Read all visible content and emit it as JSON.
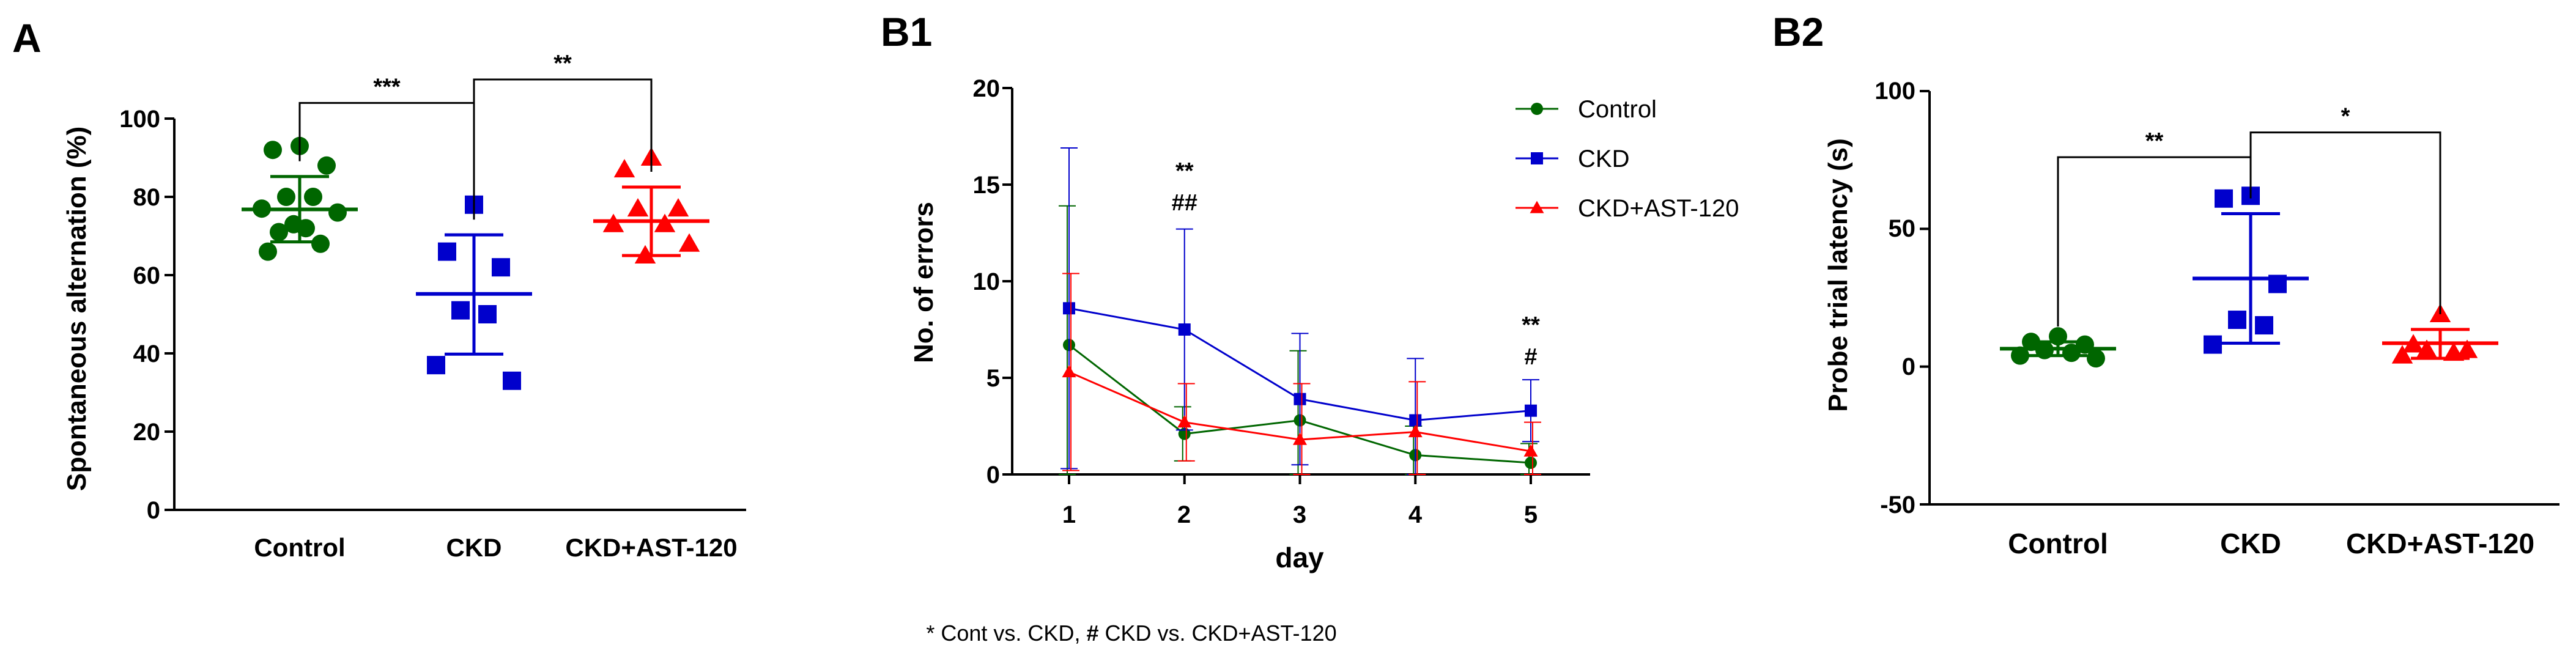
{
  "colors": {
    "control": "#006600",
    "ckd": "#0000cc",
    "ast": "#ff0000",
    "axis": "#000000"
  },
  "footnote": {
    "lead": "* Cont vs. CKD, ",
    "hash": "#",
    "tail": " CKD vs. CKD+AST-120"
  },
  "chart_data": [
    {
      "id": "A",
      "panel_label": "A",
      "type": "scatter",
      "ylabel": "Spontaneous alternation (%)",
      "ylim": [
        0,
        100
      ],
      "yticks": [
        "0",
        "20",
        "40",
        "60",
        "80",
        "100"
      ],
      "categories": [
        "Control",
        "CKD",
        "CKD+AST-120"
      ],
      "groups": [
        {
          "name": "Control",
          "marker": "circle",
          "color": "control",
          "mean": 76.8,
          "sd_low": 68.5,
          "sd_high": 85.2,
          "values": [
            93,
            92,
            88,
            80,
            80,
            77,
            76,
            73,
            72,
            71,
            68,
            66
          ]
        },
        {
          "name": "CKD",
          "marker": "square",
          "color": "ckd",
          "mean": 55.2,
          "sd_low": 39.8,
          "sd_high": 70.3,
          "values": [
            78,
            66,
            62,
            51,
            50,
            37,
            33
          ]
        },
        {
          "name": "CKD+AST-120",
          "marker": "triangle",
          "color": "ast",
          "mean": 73.8,
          "sd_low": 65.0,
          "sd_high": 82.5,
          "values": [
            90,
            87,
            77,
            77,
            73,
            73,
            68,
            65
          ]
        }
      ],
      "brackets": [
        {
          "from": 0,
          "to": 1,
          "label": "***",
          "y": 104
        },
        {
          "from": 1,
          "to": 2,
          "label": "**",
          "y": 110
        }
      ]
    },
    {
      "id": "B1",
      "panel_label": "B1",
      "type": "line",
      "xlabel": "day",
      "ylabel": "No. of errors",
      "x": [
        1,
        2,
        3,
        4,
        5
      ],
      "xticks": [
        "1",
        "2",
        "3",
        "4",
        "5"
      ],
      "ylim": [
        0,
        20
      ],
      "yticks": [
        "0",
        "5",
        "10",
        "15",
        "20"
      ],
      "series": [
        {
          "name": "Control",
          "marker": "circle",
          "color": "control",
          "values": [
            6.7,
            2.1,
            2.8,
            1.0,
            0.6
          ],
          "err": [
            7.2,
            1.4,
            3.6,
            1.5,
            1.0
          ]
        },
        {
          "name": "CKD",
          "marker": "square",
          "color": "ckd",
          "values": [
            8.6,
            7.5,
            3.9,
            2.8,
            3.3
          ],
          "err": [
            8.3,
            5.2,
            3.4,
            3.2,
            1.6
          ]
        },
        {
          "name": "CKD+AST-120",
          "marker": "triangle",
          "color": "ast",
          "values": [
            5.3,
            2.7,
            1.8,
            2.2,
            1.2
          ],
          "err": [
            5.1,
            2.0,
            2.9,
            2.6,
            1.5
          ]
        }
      ],
      "annotations": [
        {
          "x": 2,
          "lines": [
            "**",
            "##"
          ]
        },
        {
          "x": 5,
          "lines": [
            "**",
            "#"
          ]
        }
      ],
      "legend": [
        "Control",
        "CKD",
        "CKD+AST-120"
      ],
      "legend_position": "top-right"
    },
    {
      "id": "B2",
      "panel_label": "B2",
      "type": "scatter",
      "ylabel": "Probe trial latency (s)",
      "ylim": [
        -50,
        100
      ],
      "yticks": [
        "-50",
        "0",
        "50",
        "100"
      ],
      "categories": [
        "Control",
        "CKD",
        "CKD+AST-120"
      ],
      "groups": [
        {
          "name": "Control",
          "marker": "circle",
          "color": "control",
          "mean": 6.5,
          "sd_low": 4.0,
          "sd_high": 9.0,
          "values": [
            11,
            9,
            8,
            6,
            5,
            4,
            3
          ]
        },
        {
          "name": "CKD",
          "marker": "square",
          "color": "ckd",
          "mean": 32,
          "sd_low": 8.5,
          "sd_high": 55.5,
          "values": [
            62,
            61,
            30,
            17,
            15,
            8
          ]
        },
        {
          "name": "CKD+AST-120",
          "marker": "triangle",
          "color": "ast",
          "mean": 8.5,
          "sd_low": 3.0,
          "sd_high": 13.5,
          "values": [
            19,
            8,
            6,
            6,
            5,
            4
          ]
        }
      ],
      "brackets": [
        {
          "from": 0,
          "to": 1,
          "label": "**",
          "y": 76
        },
        {
          "from": 1,
          "to": 2,
          "label": "*",
          "y": 85
        }
      ]
    }
  ]
}
